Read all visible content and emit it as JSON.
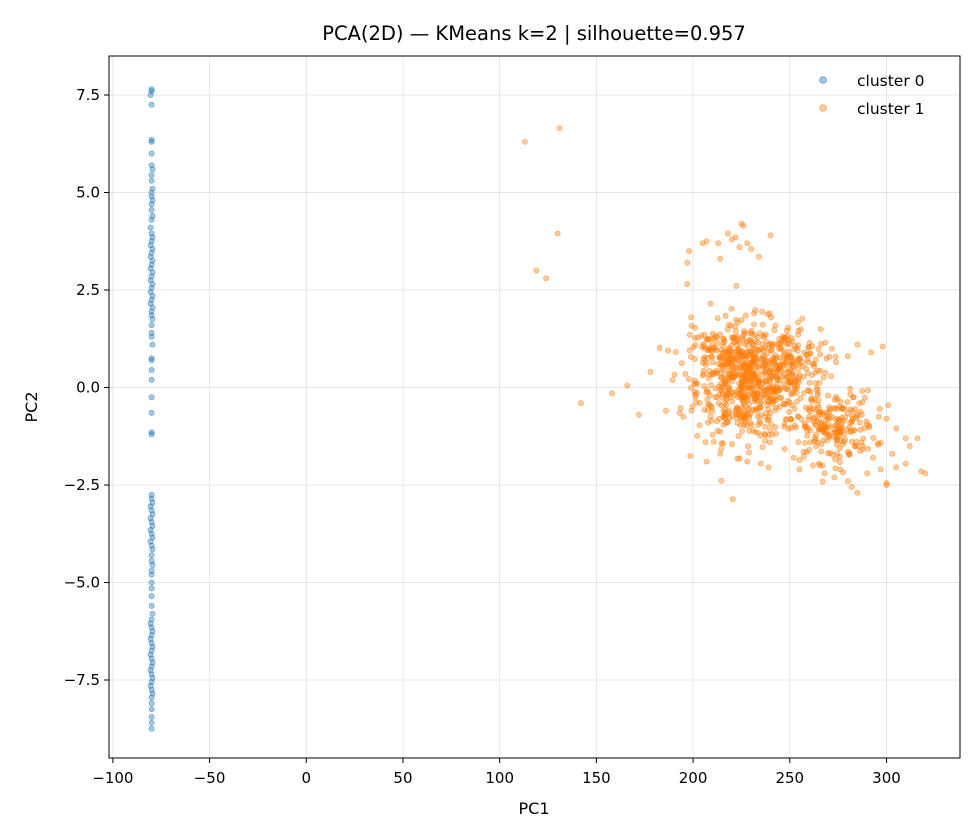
{
  "chart_data": {
    "type": "scatter",
    "title": "PCA(2D) — KMeans k=2  |  silhouette=0.957",
    "xlabel": "PC1",
    "ylabel": "PC2",
    "xlim": [
      -102,
      338
    ],
    "ylim": [
      -9.5,
      8.5
    ],
    "x_ticks": [
      -100,
      -50,
      0,
      50,
      100,
      150,
      200,
      250,
      300
    ],
    "x_tick_labels": [
      "−100",
      "−50",
      "0",
      "50",
      "100",
      "150",
      "200",
      "250",
      "300"
    ],
    "y_ticks": [
      -7.5,
      -5.0,
      -2.5,
      0.0,
      2.5,
      5.0,
      7.5
    ],
    "y_tick_labels": [
      "−7.5",
      "−5.0",
      "−2.5",
      "0.0",
      "2.5",
      "5.0",
      "7.5"
    ],
    "grid": true,
    "legend_position": "top-right",
    "series": [
      {
        "name": "cluster 0",
        "color": "#1f77b4",
        "points": [
          [
            -80,
            7.65
          ],
          [
            -80,
            7.6
          ],
          [
            -80.5,
            7.5
          ],
          [
            -80,
            7.25
          ],
          [
            -80,
            6.35
          ],
          [
            -80,
            6.3
          ],
          [
            -80,
            6.0
          ],
          [
            -80,
            5.7
          ],
          [
            -79.5,
            5.6
          ],
          [
            -80,
            5.45
          ],
          [
            -80,
            5.3
          ],
          [
            -79.5,
            5.1
          ],
          [
            -80,
            5.0
          ],
          [
            -80,
            4.9
          ],
          [
            -79.5,
            4.8
          ],
          [
            -80,
            4.7
          ],
          [
            -80,
            4.55
          ],
          [
            -79.5,
            4.4
          ],
          [
            -80,
            4.3
          ],
          [
            -80.5,
            4.1
          ],
          [
            -80,
            3.95
          ],
          [
            -79.5,
            3.85
          ],
          [
            -80,
            3.75
          ],
          [
            -80.5,
            3.65
          ],
          [
            -79.5,
            3.55
          ],
          [
            -80,
            3.45
          ],
          [
            -80.5,
            3.35
          ],
          [
            -79.5,
            3.25
          ],
          [
            -80,
            3.15
          ],
          [
            -80.5,
            3.05
          ],
          [
            -79.5,
            2.95
          ],
          [
            -80,
            2.85
          ],
          [
            -80.5,
            2.75
          ],
          [
            -79.5,
            2.65
          ],
          [
            -80,
            2.55
          ],
          [
            -80.5,
            2.45
          ],
          [
            -79.5,
            2.35
          ],
          [
            -80,
            2.25
          ],
          [
            -80.5,
            2.15
          ],
          [
            -79.5,
            2.05
          ],
          [
            -80,
            1.95
          ],
          [
            -80,
            1.85
          ],
          [
            -79.5,
            1.75
          ],
          [
            -80,
            1.6
          ],
          [
            -80,
            1.4
          ],
          [
            -80,
            1.3
          ],
          [
            -79.5,
            1.1
          ],
          [
            -80,
            0.75
          ],
          [
            -80,
            0.7
          ],
          [
            -80,
            0.45
          ],
          [
            -80,
            0.2
          ],
          [
            -80,
            -0.25
          ],
          [
            -80,
            -0.65
          ],
          [
            -80,
            -1.15
          ],
          [
            -80,
            -1.2
          ],
          [
            -80,
            -2.75
          ],
          [
            -80,
            -2.85
          ],
          [
            -79.5,
            -2.95
          ],
          [
            -80.5,
            -3.05
          ],
          [
            -80,
            -3.15
          ],
          [
            -79.5,
            -3.25
          ],
          [
            -80.5,
            -3.35
          ],
          [
            -80,
            -3.45
          ],
          [
            -79.5,
            -3.55
          ],
          [
            -80.5,
            -3.65
          ],
          [
            -80,
            -3.75
          ],
          [
            -79.5,
            -3.85
          ],
          [
            -80.5,
            -3.95
          ],
          [
            -80,
            -4.05
          ],
          [
            -79.5,
            -4.15
          ],
          [
            -80,
            -4.3
          ],
          [
            -80,
            -4.45
          ],
          [
            -79.5,
            -4.55
          ],
          [
            -80,
            -4.7
          ],
          [
            -80,
            -4.8
          ],
          [
            -80,
            -5.0
          ],
          [
            -80,
            -5.15
          ],
          [
            -80,
            -5.35
          ],
          [
            -80,
            -5.6
          ],
          [
            -79.5,
            -5.8
          ],
          [
            -80,
            -5.95
          ],
          [
            -80.5,
            -6.05
          ],
          [
            -80,
            -6.15
          ],
          [
            -79.5,
            -6.25
          ],
          [
            -80,
            -6.35
          ],
          [
            -80.5,
            -6.45
          ],
          [
            -80,
            -6.55
          ],
          [
            -79.5,
            -6.65
          ],
          [
            -80,
            -6.75
          ],
          [
            -80.5,
            -6.85
          ],
          [
            -80,
            -6.95
          ],
          [
            -79.5,
            -7.05
          ],
          [
            -80,
            -7.15
          ],
          [
            -80.5,
            -7.25
          ],
          [
            -80,
            -7.35
          ],
          [
            -79.5,
            -7.45
          ],
          [
            -80,
            -7.55
          ],
          [
            -80.5,
            -7.65
          ],
          [
            -80,
            -7.75
          ],
          [
            -79.5,
            -7.85
          ],
          [
            -80,
            -7.95
          ],
          [
            -80,
            -8.1
          ],
          [
            -80,
            -8.25
          ],
          [
            -80,
            -8.45
          ],
          [
            -80,
            -8.6
          ],
          [
            -80,
            -8.75
          ]
        ]
      },
      {
        "name": "cluster 1",
        "color": "#ff7f0e",
        "points": [
          [
            113,
            6.3
          ],
          [
            131,
            6.65
          ],
          [
            130,
            3.95
          ],
          [
            119,
            3.0
          ],
          [
            124,
            2.8
          ],
          [
            142,
            -0.4
          ],
          [
            158,
            -0.15
          ],
          [
            166,
            0.05
          ],
          [
            172,
            -0.7
          ],
          [
            178,
            0.4
          ],
          [
            186,
            -0.6
          ],
          [
            187,
            0.95
          ],
          [
            193,
            -0.65
          ],
          [
            195,
            -0.75
          ],
          [
            196,
            0.35
          ],
          [
            197,
            2.65
          ],
          [
            197,
            3.2
          ],
          [
            198,
            3.5
          ],
          [
            199,
            1.8
          ],
          [
            205,
            3.7
          ],
          [
            207,
            3.75
          ],
          [
            209,
            2.15
          ],
          [
            213,
            3.7
          ],
          [
            214,
            3.3
          ],
          [
            218,
            3.95
          ],
          [
            220,
            3.8
          ],
          [
            222,
            3.85
          ],
          [
            224,
            3.6
          ],
          [
            225,
            4.2
          ],
          [
            226,
            4.15
          ],
          [
            228,
            3.7
          ],
          [
            230,
            3.55
          ],
          [
            234,
            3.35
          ],
          [
            240,
            3.9
          ],
          [
            207,
            -1.9
          ],
          [
            214,
            -1.7
          ],
          [
            228,
            -1.9
          ],
          [
            235,
            -1.95
          ],
          [
            239,
            -2.05
          ],
          [
            252,
            -1.8
          ],
          [
            255,
            -2.1
          ],
          [
            260,
            -1.6
          ],
          [
            262,
            -2.0
          ],
          [
            268,
            -2.2
          ],
          [
            273,
            -2.3
          ],
          [
            276,
            -2.1
          ],
          [
            280,
            -2.4
          ],
          [
            282,
            -2.55
          ],
          [
            285,
            -2.7
          ],
          [
            290,
            -2.2
          ],
          [
            293,
            -1.8
          ],
          [
            297,
            -2.1
          ],
          [
            300,
            -2.45
          ],
          [
            300,
            -2.5
          ],
          [
            305,
            -2.05
          ],
          [
            310,
            -1.95
          ],
          [
            316,
            -1.3
          ],
          [
            318,
            -2.15
          ],
          [
            320,
            -2.2
          ],
          [
            298,
            1.05
          ],
          [
            292,
            0.9
          ],
          [
            285,
            1.1
          ],
          [
            280,
            0.8
          ],
          [
            300,
            -0.8
          ],
          [
            296,
            -0.75
          ],
          [
            290,
            -0.95
          ],
          [
            305,
            -1.05
          ],
          [
            310,
            -1.3
          ],
          [
            312,
            -1.5
          ],
          [
            303,
            -1.7
          ]
        ],
        "dense_regions": [
          {
            "center": [
              228,
              0.15
            ],
            "spread": [
              13,
              0.75
            ],
            "count": 640
          },
          {
            "center": [
              250,
              0.6
            ],
            "spread": [
              10,
              0.5
            ],
            "count": 150
          },
          {
            "center": [
              272,
              -1.0
            ],
            "spread": [
              11,
              0.45
            ],
            "count": 220
          },
          {
            "center": [
              212,
              0.8
            ],
            "spread": [
              8,
              0.35
            ],
            "count": 60
          }
        ]
      }
    ]
  }
}
